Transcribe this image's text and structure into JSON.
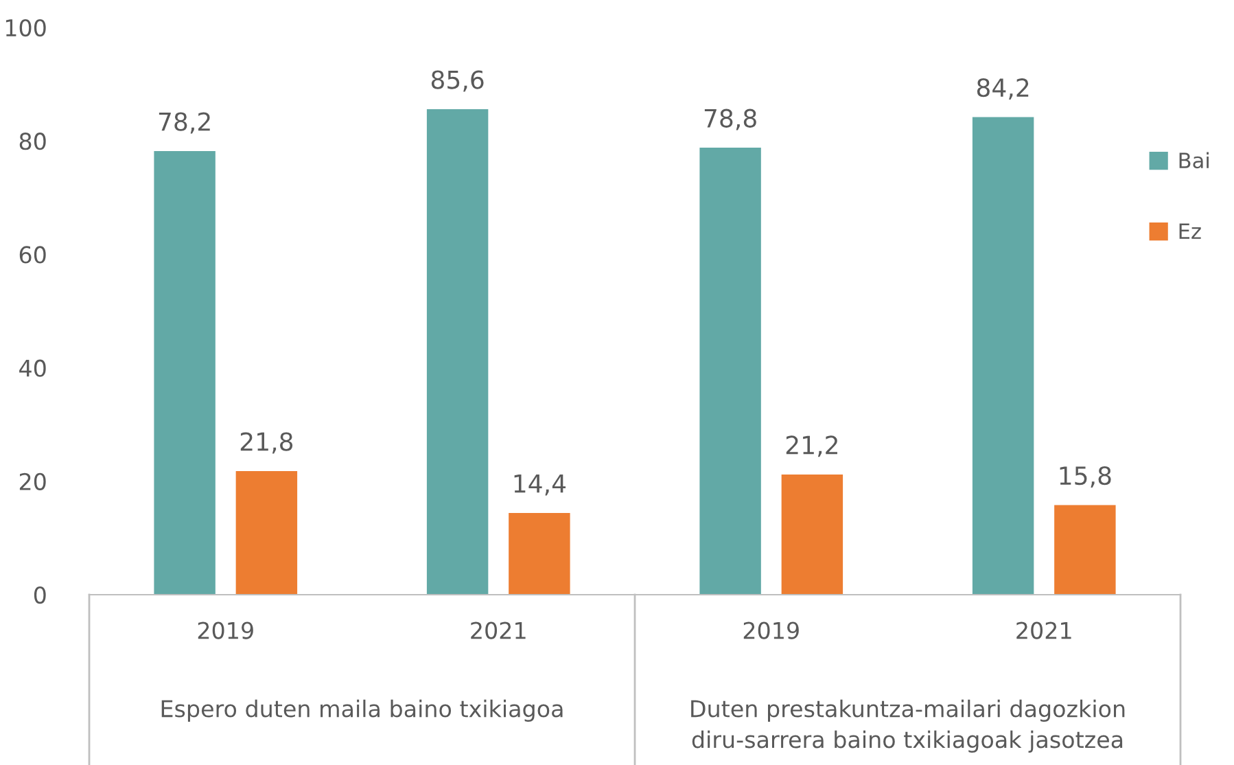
{
  "chart_data": {
    "type": "bar",
    "categories": [
      "2019",
      "2021",
      "2019",
      "2021"
    ],
    "series": [
      {
        "name": "Bai",
        "color": "#62a9a6",
        "values": [
          78.2,
          85.6,
          78.8,
          84.2
        ],
        "value_labels": [
          "78,2",
          "85,6",
          "78,8",
          "84,2"
        ]
      },
      {
        "name": "Ez",
        "color": "#ed7d31",
        "values": [
          21.8,
          14.4,
          21.2,
          15.8
        ],
        "value_labels": [
          "21,8",
          "14,4",
          "21,2",
          "15,8"
        ]
      }
    ],
    "annotations": [
      "Espero duten maila baino txikiagoa",
      "Duten prestakuntza-mailari dagozkion\ndiru-sarrera baino txikiagoak jasotzea"
    ],
    "ylim": [
      0,
      100
    ],
    "yticks": [
      0,
      20,
      40,
      60,
      80,
      100
    ],
    "grid": false,
    "legend": "right"
  }
}
